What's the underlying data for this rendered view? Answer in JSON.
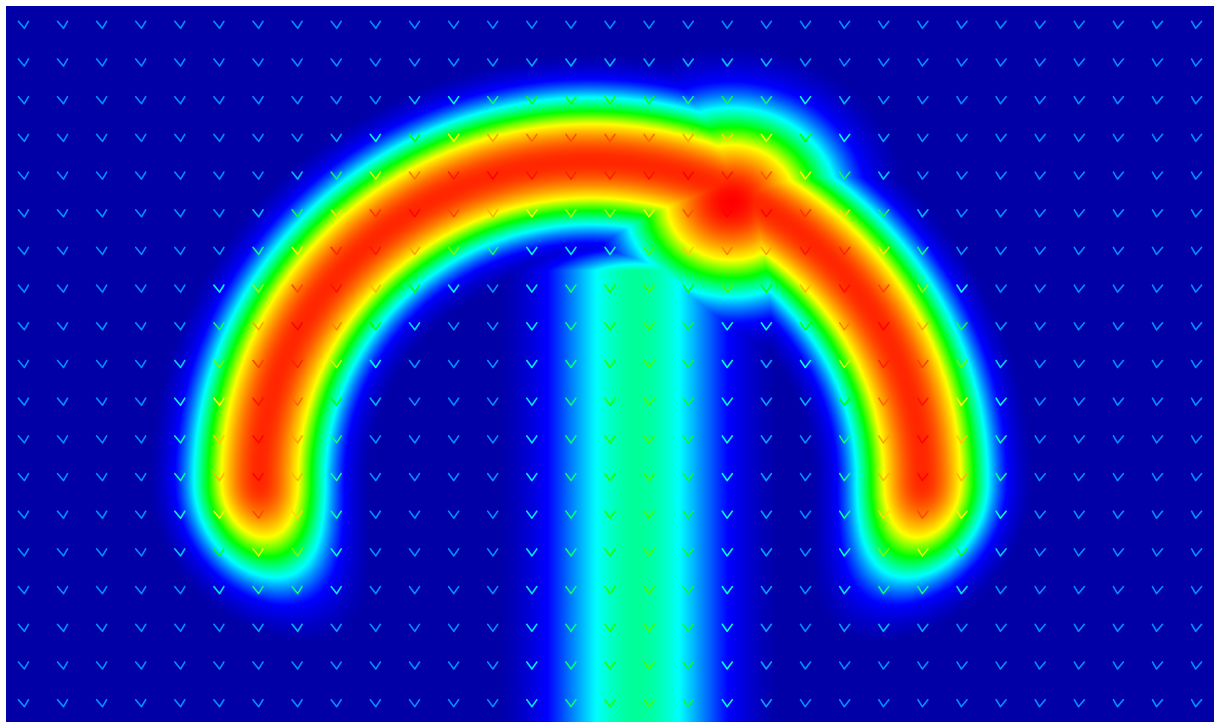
{
  "chart_data": {
    "type": "heatmap",
    "subtype": "vector-field-over-scalar-field",
    "title": "",
    "xlabel": "",
    "ylabel": "",
    "axes_visible": false,
    "grid": false,
    "legend": "none",
    "colormap": [
      "#000080",
      "#0000ff",
      "#00ffff",
      "#00ff00",
      "#ffff00",
      "#ff8000",
      "#ff0000"
    ],
    "colorbar_visible": false,
    "scalar_field": {
      "grid_size": [
        31,
        19
      ],
      "normalized_range": [
        0,
        1
      ],
      "background_value": 0.05,
      "features": [
        {
          "name": "upper-arc",
          "type": "ring-arc",
          "center": [
            15,
            12.6
          ],
          "radius": 8.5,
          "thickness": 3.3,
          "peak": 0.95
        },
        {
          "name": "right-lobe-peak",
          "type": "gaussian",
          "center": [
            18.6,
            5.2
          ],
          "spread": [
            2.6,
            2.4
          ],
          "peak": 1.0
        },
        {
          "name": "central-stem",
          "type": "stem",
          "center_x": 16.2,
          "half_width": 3.5,
          "from_row": 7,
          "to_row": 18,
          "peak": 0.4
        }
      ]
    },
    "vector_field": {
      "grid_size": [
        31,
        19
      ],
      "glyph": "chevron",
      "mean_direction": "down",
      "side_tilt": "outward",
      "color_by": "magnitude"
    }
  }
}
